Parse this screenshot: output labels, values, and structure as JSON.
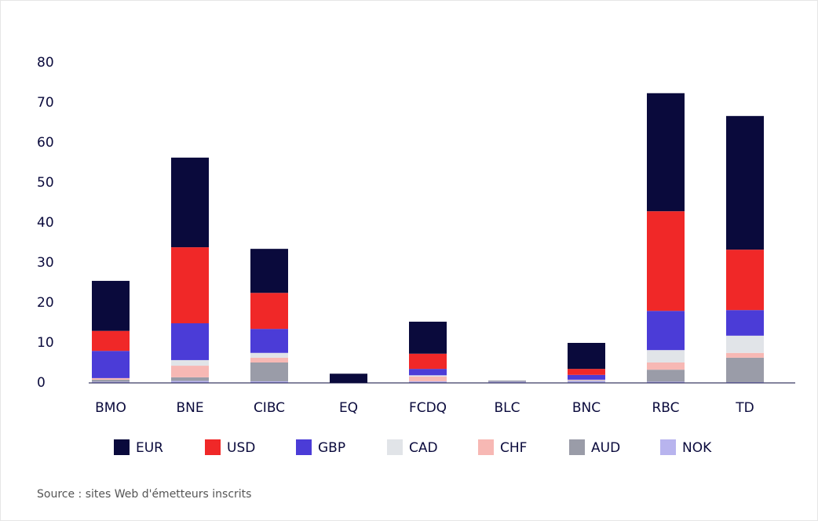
{
  "chart_data": {
    "type": "bar",
    "stacked": true,
    "source": "Source : sites Web d'émetteurs inscrits",
    "categories": [
      "BMO",
      "BNE",
      "CIBC",
      "EQ",
      "FCDQ",
      "BLC",
      "BNC",
      "RBC",
      "TD"
    ],
    "series": [
      {
        "name": "EUR",
        "color": "#0a0a3c",
        "values": [
          12.5,
          22.4,
          11,
          2.3,
          8,
          0,
          6.5,
          29.5,
          33.4
        ]
      },
      {
        "name": "USD",
        "color": "#f02828",
        "values": [
          5,
          19,
          9,
          0,
          3.8,
          0,
          1.5,
          24.9,
          15.1
        ]
      },
      {
        "name": "GBP",
        "color": "#4b3cd7",
        "values": [
          6.8,
          9.2,
          6,
          0,
          1.6,
          0,
          1.2,
          9.8,
          6.4
        ]
      },
      {
        "name": "CAD",
        "color": "#e1e4e8",
        "values": [
          0,
          1.4,
          1.2,
          0,
          0.3,
          0,
          0.1,
          3.1,
          4.3
        ]
      },
      {
        "name": "CHF",
        "color": "#f7b8b4",
        "values": [
          0.4,
          2.9,
          1.2,
          0,
          1.2,
          0,
          0.1,
          1.8,
          1.2
        ]
      },
      {
        "name": "AUD",
        "color": "#9a9ca8",
        "values": [
          0.5,
          0.9,
          4.7,
          0,
          0,
          0.3,
          0.1,
          3,
          6.1
        ]
      },
      {
        "name": "NOK",
        "color": "#b8b4ee",
        "values": [
          0.3,
          0.5,
          0.4,
          0,
          0.4,
          0.3,
          0.5,
          0.3,
          0.2
        ]
      }
    ],
    "ylim": [
      0,
      80
    ],
    "yticks": [
      0,
      10,
      20,
      30,
      40,
      50,
      60,
      70,
      80
    ],
    "legend": "bottom"
  }
}
